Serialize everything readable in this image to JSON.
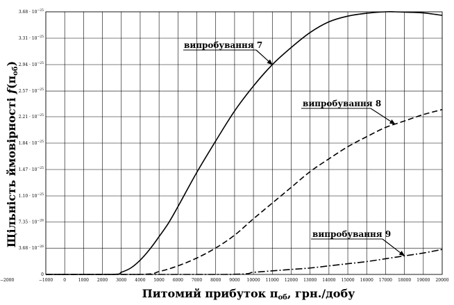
{
  "chart_data": {
    "type": "line",
    "xlabel": "Питомий прибуток п",
    "xlabel_sub": "об",
    "xlabel_tail": ", грн./добу",
    "ylabel": "Щільність ймовірності ",
    "ylabel_fn": "f",
    "ylabel_arg": "(п",
    "ylabel_sub": "об",
    "ylabel_close": ")",
    "xlim": [
      -1000,
      20000
    ],
    "x_ticks": [
      -1000,
      0,
      1000,
      2000,
      3000,
      4000,
      5000,
      6000,
      7000,
      8000,
      9000,
      10000,
      11000,
      12000,
      13000,
      14000,
      15000,
      16000,
      17000,
      18000,
      19000,
      20000
    ],
    "x_tick_labels": [
      "−1000",
      "0",
      "1000",
      "2000",
      "3000",
      "4000",
      "5000",
      "6000",
      "7000",
      "8000",
      "9000",
      "10000",
      "11000",
      "12000",
      "13000",
      "14000",
      "15000",
      "16000",
      "17000",
      "18000",
      "19000",
      "20000"
    ],
    "extra_x_label": "−2000",
    "ylim": [
      0,
      3.68e-25
    ],
    "y_ticks": [
      0,
      3.68e-26,
      7.35e-26,
      1.1e-25,
      1.47e-25,
      1.84e-25,
      2.21e-25,
      2.57e-25,
      2.94e-25,
      3.31e-25,
      3.68e-25
    ],
    "y_tick_labels": [
      {
        "mant": "0",
        "exp": ""
      },
      {
        "mant": "3.68 · 10",
        "exp": "−26"
      },
      {
        "mant": "7.35 · 10",
        "exp": "−26"
      },
      {
        "mant": "1.10 · 10",
        "exp": "−25"
      },
      {
        "mant": "1.47 · 10",
        "exp": "−25"
      },
      {
        "mant": "1.84 · 10",
        "exp": "−25"
      },
      {
        "mant": "2.21 · 10",
        "exp": "−25"
      },
      {
        "mant": "2.57 · 10",
        "exp": "−25"
      },
      {
        "mant": "2.94 · 10",
        "exp": "−25"
      },
      {
        "mant": "3.31 · 10",
        "exp": "−25"
      },
      {
        "mant": "3.68 · 10",
        "exp": "−25"
      }
    ],
    "grid": true,
    "series": [
      {
        "name": "випробування 7",
        "style": "solid",
        "x": [
          -1000,
          2500,
          3000,
          3500,
          4000,
          4500,
          5000,
          5500,
          6000,
          7000,
          8000,
          9000,
          10000,
          11000,
          12000,
          13000,
          14000,
          15000,
          16000,
          17000,
          17500,
          18000,
          19000,
          20000
        ],
        "y": [
          0,
          0,
          3e-27,
          9e-27,
          2e-26,
          3.5e-26,
          5.3e-26,
          7.2e-26,
          9.5e-26,
          1.43e-25,
          1.87e-25,
          2.29e-25,
          2.64e-25,
          2.94e-25,
          3.18e-25,
          3.39e-25,
          3.54e-25,
          3.62e-25,
          3.66e-25,
          3.68e-25,
          3.68e-25,
          3.675e-25,
          3.665e-25,
          3.63e-25
        ]
      },
      {
        "name": "випробування 8",
        "style": "dashed",
        "x": [
          -1000,
          4000,
          5000,
          6000,
          7000,
          8000,
          9000,
          10000,
          11000,
          12000,
          13000,
          14000,
          15000,
          16000,
          17000,
          18000,
          19000,
          20000
        ],
        "y": [
          0,
          0,
          4e-27,
          1.2e-26,
          2.3e-26,
          3.7e-26,
          5.5e-26,
          7.8e-26,
          1e-25,
          1.22e-25,
          1.44e-25,
          1.62e-25,
          1.79e-25,
          1.93e-25,
          2.06e-25,
          2.15e-25,
          2.24e-25,
          2.31e-25
        ]
      },
      {
        "name": "випробування 9",
        "style": "dashdot",
        "x": [
          -1000,
          8500,
          10000,
          11000,
          12000,
          13000,
          14000,
          15000,
          16000,
          17000,
          18000,
          19000,
          20000
        ],
        "y": [
          0,
          0,
          3e-27,
          5e-27,
          7e-27,
          9e-27,
          1.2e-26,
          1.5e-26,
          1.8e-26,
          2.2e-26,
          2.6e-26,
          3e-26,
          3.5e-26
        ]
      }
    ],
    "annotations": [
      {
        "text": "випробування 7",
        "series": 0
      },
      {
        "text": "випробування 8",
        "series": 1
      },
      {
        "text": "випробування 9",
        "series": 2
      }
    ]
  }
}
